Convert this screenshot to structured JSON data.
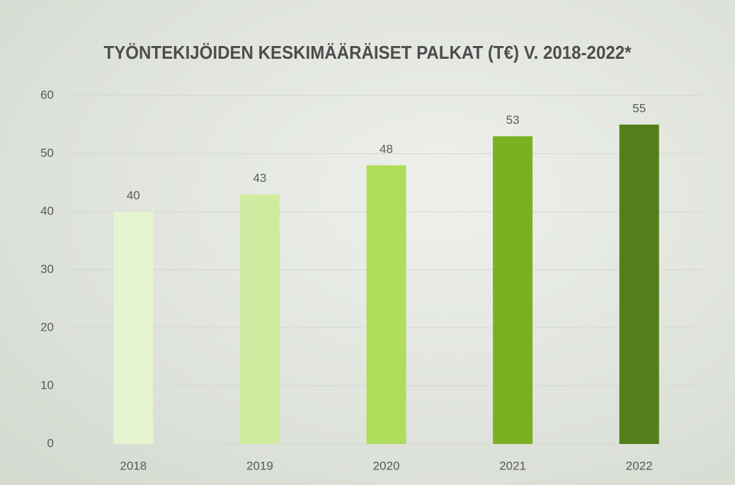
{
  "chart_data": {
    "type": "bar",
    "title": "TYÖNTEKIJÖIDEN KESKIMÄÄRÄISET PALKAT (T€) V. 2018-2022*",
    "categories": [
      "2018",
      "2019",
      "2020",
      "2021",
      "2022"
    ],
    "values": [
      40,
      43,
      48,
      53,
      55
    ],
    "colors": [
      "#e5f5cf",
      "#cfeb9f",
      "#b0dd5c",
      "#7bb022",
      "#547f1a"
    ],
    "ylim": [
      0,
      60
    ],
    "yticks": [
      0,
      10,
      20,
      30,
      40,
      50,
      60
    ],
    "grid": true,
    "data_labels": true
  }
}
